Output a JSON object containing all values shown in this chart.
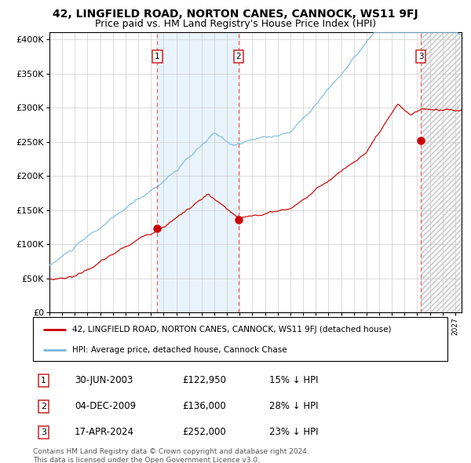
{
  "title": "42, LINGFIELD ROAD, NORTON CANES, CANNOCK, WS11 9FJ",
  "subtitle": "Price paid vs. HM Land Registry's House Price Index (HPI)",
  "ylim": [
    0,
    410000
  ],
  "yticks": [
    0,
    50000,
    100000,
    150000,
    200000,
    250000,
    300000,
    350000,
    400000
  ],
  "ytick_labels": [
    "£0",
    "£50K",
    "£100K",
    "£150K",
    "£200K",
    "£250K",
    "£300K",
    "£350K",
    "£400K"
  ],
  "xlim_start": 1995.0,
  "xlim_end": 2027.5,
  "sale_points": [
    {
      "year": 2003.5,
      "price": 122950,
      "label": "1"
    },
    {
      "year": 2009.92,
      "price": 136000,
      "label": "2"
    },
    {
      "year": 2024.29,
      "price": 252000,
      "label": "3"
    }
  ],
  "hpi_color": "#7ab8d9",
  "price_color": "#cc0000",
  "shade_color": "#ddeeff",
  "grid_color": "#cccccc",
  "title_fontsize": 10,
  "subtitle_fontsize": 9,
  "legend_items": [
    "42, LINGFIELD ROAD, NORTON CANES, CANNOCK, WS11 9FJ (detached house)",
    "HPI: Average price, detached house, Cannock Chase"
  ],
  "table_rows": [
    {
      "num": "1",
      "date": "30-JUN-2003",
      "price": "£122,950",
      "pct": "15% ↓ HPI"
    },
    {
      "num": "2",
      "date": "04-DEC-2009",
      "price": "£136,000",
      "pct": "28% ↓ HPI"
    },
    {
      "num": "3",
      "date": "17-APR-2024",
      "price": "£252,000",
      "pct": "23% ↓ HPI"
    }
  ],
  "footnote": "Contains HM Land Registry data © Crown copyright and database right 2024.\nThis data is licensed under the Open Government Licence v3.0."
}
